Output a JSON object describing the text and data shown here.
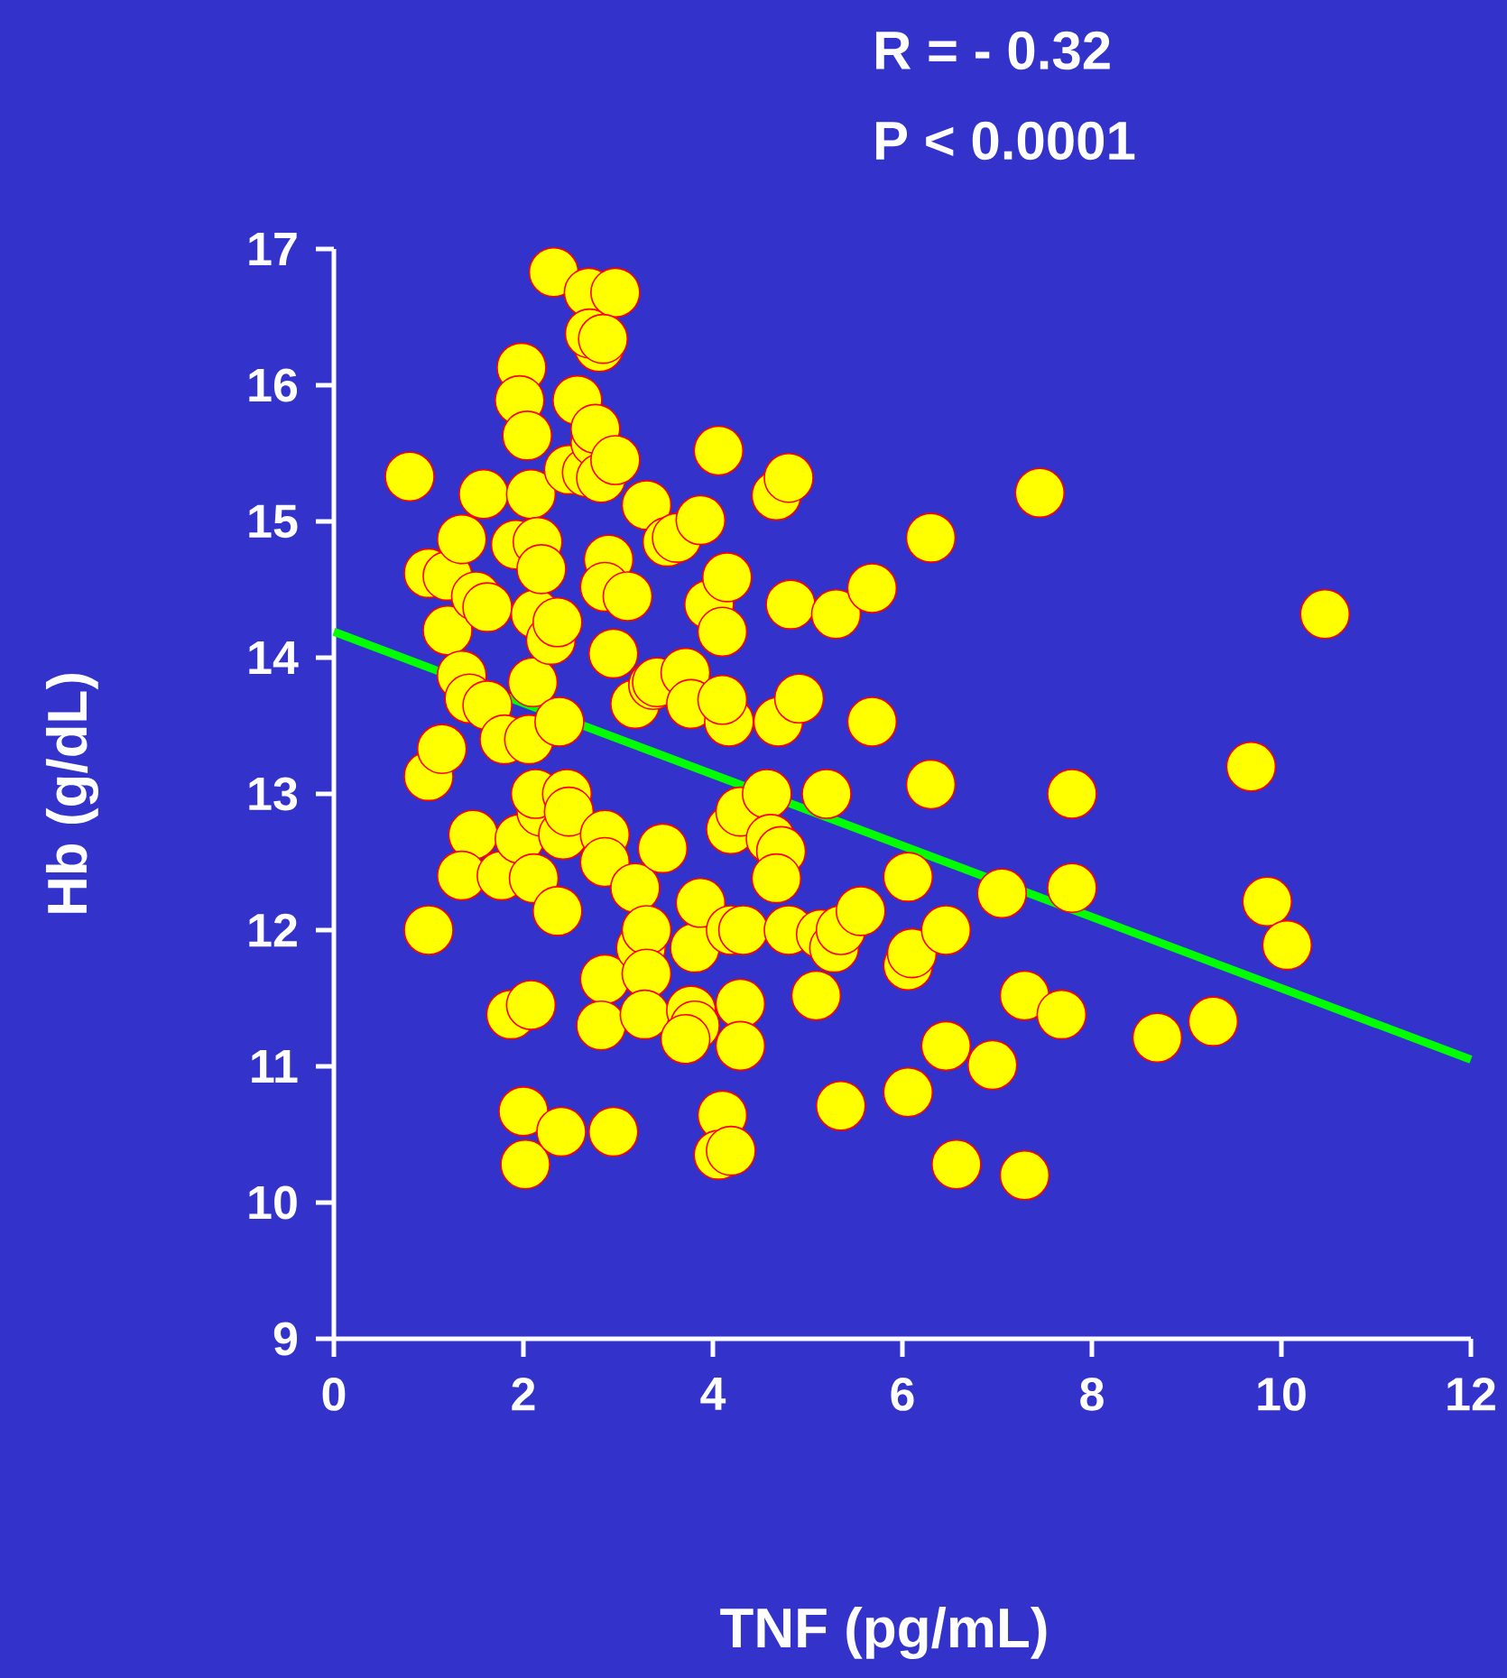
{
  "chart_data": {
    "type": "scatter",
    "xlabel": "TNF (pg/mL)",
    "ylabel": "Hb (g/dL)",
    "annotations": [
      "R  = - 0.32",
      "P < 0.0001"
    ],
    "xlim": [
      0,
      12
    ],
    "ylim": [
      9,
      17
    ],
    "xticks": [
      0,
      2,
      4,
      6,
      8,
      10,
      12
    ],
    "yticks": [
      9,
      10,
      11,
      12,
      13,
      14,
      15,
      16,
      17
    ],
    "series": [
      {
        "marker": "circle",
        "color": "#ffff00",
        "x": [
          0.8,
          1.0,
          1.0,
          1.0,
          1.14,
          1.2,
          1.2,
          1.35,
          1.35,
          1.43,
          1.47,
          1.35,
          1.58,
          1.5,
          1.62,
          1.62,
          1.77,
          1.8,
          1.87,
          1.92,
          1.98,
          1.96,
          2.04,
          2.08,
          2.0,
          2.02,
          2.08,
          2.06,
          2.1,
          2.13,
          2.15,
          2.19,
          1.96,
          2.11,
          2.19,
          2.13,
          2.29,
          2.36,
          2.32,
          2.38,
          2.36,
          2.4,
          2.42,
          2.46,
          2.48,
          2.48,
          2.57,
          2.67,
          2.76,
          2.8,
          2.69,
          2.7,
          2.97,
          2.84,
          2.76,
          2.82,
          2.97,
          2.9,
          2.86,
          3.1,
          2.95,
          2.86,
          2.86,
          2.86,
          2.82,
          2.95,
          3.18,
          3.18,
          3.3,
          3.24,
          3.3,
          3.3,
          3.28,
          3.37,
          3.47,
          3.52,
          3.62,
          3.41,
          3.71,
          3.77,
          3.81,
          3.77,
          3.81,
          3.87,
          3.87,
          3.71,
          3.96,
          4.1,
          4.06,
          4.15,
          4.17,
          4.1,
          4.19,
          4.19,
          4.1,
          4.06,
          4.19,
          4.29,
          4.29,
          4.29,
          4.32,
          4.57,
          4.61,
          4.72,
          4.67,
          4.69,
          4.67,
          4.8,
          4.82,
          4.8,
          4.91,
          5.09,
          5.14,
          5.28,
          5.2,
          5.3,
          5.35,
          5.35,
          5.56,
          5.68,
          5.68,
          6.06,
          6.06,
          6.06,
          6.1,
          6.3,
          6.3,
          6.46,
          6.46,
          6.57,
          6.95,
          7.05,
          7.29,
          7.29,
          7.45,
          7.68,
          7.79,
          7.79,
          8.69,
          9.28,
          9.68,
          9.85,
          10.06,
          10.46
        ],
        "values": [
          15.33,
          14.62,
          13.13,
          12.0,
          13.33,
          14.6,
          14.2,
          14.87,
          13.87,
          13.7,
          12.7,
          12.4,
          15.2,
          14.45,
          14.37,
          13.65,
          12.4,
          13.4,
          11.38,
          14.83,
          16.13,
          15.89,
          15.63,
          15.2,
          10.67,
          10.28,
          11.45,
          13.4,
          13.82,
          14.32,
          14.85,
          14.65,
          12.67,
          12.38,
          12.87,
          13.0,
          14.13,
          14.26,
          16.83,
          13.53,
          12.14,
          10.52,
          12.7,
          13.0,
          12.87,
          15.38,
          15.89,
          15.36,
          15.58,
          16.28,
          16.68,
          16.38,
          16.68,
          16.34,
          15.68,
          15.32,
          15.45,
          14.72,
          14.52,
          14.45,
          14.03,
          12.7,
          12.5,
          11.64,
          11.3,
          10.52,
          12.31,
          13.66,
          15.12,
          11.87,
          12.0,
          11.68,
          11.38,
          13.8,
          12.6,
          14.85,
          14.88,
          13.82,
          13.89,
          13.66,
          11.87,
          11.41,
          11.3,
          15.01,
          12.2,
          11.2,
          14.39,
          14.19,
          15.52,
          14.59,
          13.53,
          13.69,
          12.74,
          12.0,
          10.64,
          10.35,
          10.38,
          11.46,
          11.15,
          12.87,
          12.0,
          13.0,
          12.67,
          12.58,
          12.38,
          13.53,
          15.19,
          15.32,
          14.39,
          12.0,
          13.7,
          11.52,
          11.97,
          11.87,
          13.0,
          14.32,
          12.0,
          10.71,
          12.14,
          14.51,
          13.53,
          12.39,
          11.74,
          10.81,
          11.83,
          14.88,
          13.07,
          12.0,
          11.15,
          10.28,
          11.01,
          12.27,
          11.52,
          10.2,
          15.21,
          11.38,
          12.31,
          13.0,
          11.21,
          11.33,
          13.2,
          12.21,
          11.89,
          14.32
        ]
      },
      {
        "type": "line",
        "marker": "none",
        "line_style": "solid",
        "color": "#00ff00",
        "x": [
          0,
          12
        ],
        "values": [
          14.19,
          11.05
        ]
      }
    ]
  }
}
